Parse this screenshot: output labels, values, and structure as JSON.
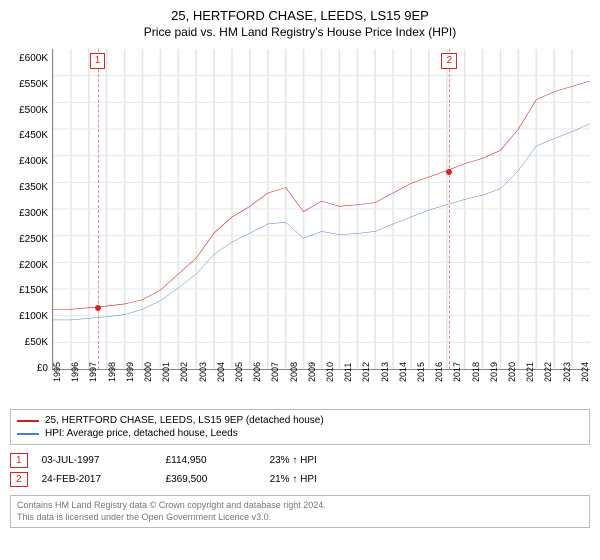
{
  "title": "25, HERTFORD CHASE, LEEDS, LS15 9EP",
  "subtitle": "Price paid vs. HM Land Registry's House Price Index (HPI)",
  "chart": {
    "type": "line",
    "background_color": "#ffffff",
    "grid_color": "#e6e6e6",
    "ylim": [
      0,
      600000
    ],
    "ytick_step": 50000,
    "y_ticks": [
      "£0",
      "£50K",
      "£100K",
      "£150K",
      "£200K",
      "£250K",
      "£300K",
      "£350K",
      "£400K",
      "£450K",
      "£500K",
      "£550K",
      "£600K"
    ],
    "xlim": [
      1995,
      2025
    ],
    "x_ticks": [
      "1995",
      "1996",
      "1997",
      "1998",
      "1999",
      "2000",
      "2001",
      "2002",
      "2003",
      "2004",
      "2005",
      "2006",
      "2007",
      "2008",
      "2009",
      "2010",
      "2011",
      "2012",
      "2013",
      "2014",
      "2015",
      "2016",
      "2017",
      "2018",
      "2019",
      "2020",
      "2021",
      "2022",
      "2023",
      "2024"
    ],
    "series": [
      {
        "name": "25, HERTFORD CHASE, LEEDS, LS15 9EP (detached house)",
        "color": "#cc1f1f",
        "line_width": 1.6,
        "points": [
          [
            1995,
            112000
          ],
          [
            1996,
            112000
          ],
          [
            1997,
            115000
          ],
          [
            1998,
            118000
          ],
          [
            1999,
            122000
          ],
          [
            2000,
            130000
          ],
          [
            2001,
            148000
          ],
          [
            2002,
            178000
          ],
          [
            2003,
            208000
          ],
          [
            2004,
            255000
          ],
          [
            2005,
            285000
          ],
          [
            2006,
            305000
          ],
          [
            2007,
            330000
          ],
          [
            2008,
            340000
          ],
          [
            2009,
            295000
          ],
          [
            2010,
            315000
          ],
          [
            2011,
            305000
          ],
          [
            2012,
            308000
          ],
          [
            2013,
            312000
          ],
          [
            2014,
            330000
          ],
          [
            2015,
            348000
          ],
          [
            2016,
            360000
          ],
          [
            2017,
            372000
          ],
          [
            2018,
            385000
          ],
          [
            2019,
            395000
          ],
          [
            2020,
            410000
          ],
          [
            2021,
            450000
          ],
          [
            2022,
            505000
          ],
          [
            2023,
            520000
          ],
          [
            2024,
            530000
          ],
          [
            2025,
            540000
          ]
        ]
      },
      {
        "name": "HPI: Average price, detached house, Leeds",
        "color": "#4a7fbf",
        "line_width": 1.4,
        "points": [
          [
            1995,
            92000
          ],
          [
            1996,
            92000
          ],
          [
            1997,
            95000
          ],
          [
            1998,
            98000
          ],
          [
            1999,
            102000
          ],
          [
            2000,
            112000
          ],
          [
            2001,
            128000
          ],
          [
            2002,
            152000
          ],
          [
            2003,
            178000
          ],
          [
            2004,
            215000
          ],
          [
            2005,
            238000
          ],
          [
            2006,
            255000
          ],
          [
            2007,
            272000
          ],
          [
            2008,
            275000
          ],
          [
            2009,
            245000
          ],
          [
            2010,
            258000
          ],
          [
            2011,
            252000
          ],
          [
            2012,
            254000
          ],
          [
            2013,
            258000
          ],
          [
            2014,
            272000
          ],
          [
            2015,
            285000
          ],
          [
            2016,
            298000
          ],
          [
            2017,
            308000
          ],
          [
            2018,
            318000
          ],
          [
            2019,
            326000
          ],
          [
            2020,
            338000
          ],
          [
            2021,
            372000
          ],
          [
            2022,
            418000
          ],
          [
            2023,
            432000
          ],
          [
            2024,
            445000
          ],
          [
            2025,
            460000
          ]
        ]
      }
    ],
    "markers": [
      {
        "id": "1",
        "x": 1997.5,
        "y": 114950
      },
      {
        "id": "2",
        "x": 2017.15,
        "y": 369500
      }
    ],
    "marker_color": "#d22",
    "marker_line_color": "#e88"
  },
  "legend": {
    "items": [
      {
        "color": "#cc1f1f",
        "label": "25, HERTFORD CHASE, LEEDS, LS15 9EP (detached house)"
      },
      {
        "color": "#4a7fbf",
        "label": "HPI: Average price, detached house, Leeds"
      }
    ]
  },
  "sales": [
    {
      "id": "1",
      "date": "03-JUL-1997",
      "price": "£114,950",
      "pct": "23% ↑ HPI"
    },
    {
      "id": "2",
      "date": "24-FEB-2017",
      "price": "£369,500",
      "pct": "21% ↑ HPI"
    }
  ],
  "footer": {
    "line1": "Contains HM Land Registry data © Crown copyright and database right 2024.",
    "line2": "This data is licensed under the Open Government Licence v3.0."
  }
}
